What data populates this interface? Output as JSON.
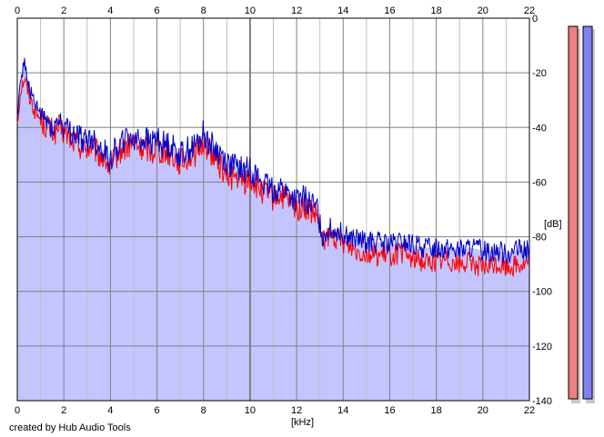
{
  "credit": "created by Hub Audio Tools",
  "chart_data": {
    "type": "area",
    "xlabel": "[kHz]",
    "ylabel": "[dB]",
    "xlim": [
      0,
      22
    ],
    "ylim": [
      -140,
      0
    ],
    "x_ticks": [
      "0",
      "2",
      "4",
      "6",
      "8",
      "10",
      "12",
      "14",
      "16",
      "18",
      "20",
      "22"
    ],
    "y_ticks": [
      "0",
      "-20",
      "-40",
      "-60",
      "-80",
      "-100",
      "-120",
      "-140"
    ],
    "grid": true,
    "colors": {
      "fill": "#c4c4ff",
      "red_line": "#ff0000",
      "blue_line": "#0000c8",
      "major_grid": "#808080",
      "minor_grid": "#c0c0c0",
      "meter_left": "#f08080",
      "meter_right": "#8080f0"
    },
    "series": [
      {
        "color_key": "blue_line",
        "x": [
          0,
          0.15,
          0.3,
          0.5,
          0.75,
          1,
          1.3,
          1.6,
          1.8,
          2,
          2.3,
          2.6,
          2.9,
          3.2,
          3.5,
          3.8,
          4,
          4.2,
          4.5,
          4.8,
          5,
          5.3,
          5.5,
          5.8,
          6,
          6.2,
          6.5,
          6.8,
          7,
          7.3,
          7.6,
          7.8,
          8,
          8.2,
          8.5,
          8.8,
          9,
          9.3,
          9.5,
          9.8,
          10,
          10.3,
          10.6,
          11,
          11.3,
          11.6,
          12,
          12.3,
          12.6,
          12.9,
          13.1,
          13.4,
          13.8,
          14.2,
          14.6,
          15,
          15.5,
          16,
          16.5,
          17,
          17.5,
          18,
          18.5,
          19,
          19.5,
          20,
          20.5,
          21,
          21.5,
          22
        ],
        "values": [
          -35,
          -22,
          -16,
          -25,
          -32,
          -35,
          -38,
          -40,
          -37,
          -40,
          -42,
          -43,
          -45,
          -44,
          -47,
          -49,
          -52,
          -48,
          -45,
          -44,
          -43,
          -45,
          -44,
          -46,
          -43,
          -46,
          -46,
          -48,
          -50,
          -48,
          -47,
          -45,
          -42,
          -45,
          -48,
          -50,
          -53,
          -54,
          -55,
          -56,
          -55,
          -58,
          -61,
          -63,
          -62,
          -64,
          -67,
          -66,
          -68,
          -70,
          -80,
          -77,
          -78,
          -80,
          -81,
          -82,
          -82,
          -83,
          -82,
          -83,
          -84,
          -84,
          -84,
          -85,
          -84,
          -85,
          -85,
          -86,
          -85,
          -85
        ]
      },
      {
        "color_key": "red_line",
        "x": [
          0,
          0.15,
          0.3,
          0.5,
          0.75,
          1,
          1.3,
          1.6,
          1.8,
          2,
          2.3,
          2.6,
          2.9,
          3.2,
          3.5,
          3.8,
          4,
          4.2,
          4.5,
          4.8,
          5,
          5.3,
          5.5,
          5.8,
          6,
          6.2,
          6.5,
          6.8,
          7,
          7.3,
          7.6,
          7.8,
          8,
          8.2,
          8.5,
          8.8,
          9,
          9.3,
          9.5,
          9.8,
          10,
          10.3,
          10.6,
          11,
          11.3,
          11.6,
          12,
          12.3,
          12.6,
          12.9,
          13.1,
          13.4,
          13.8,
          14.2,
          14.6,
          15,
          15.5,
          16,
          16.5,
          17,
          17.5,
          18,
          18.5,
          19,
          19.5,
          20,
          20.5,
          21,
          21.5,
          22
        ],
        "values": [
          -38,
          -26,
          -22,
          -28,
          -34,
          -37,
          -40,
          -42,
          -40,
          -42,
          -44,
          -46,
          -48,
          -47,
          -50,
          -52,
          -56,
          -51,
          -48,
          -47,
          -46,
          -48,
          -47,
          -49,
          -46,
          -49,
          -49,
          -51,
          -53,
          -51,
          -50,
          -48,
          -45,
          -48,
          -51,
          -55,
          -58,
          -58,
          -59,
          -60,
          -59,
          -62,
          -64,
          -66,
          -65,
          -67,
          -70,
          -69,
          -71,
          -73,
          -82,
          -80,
          -81,
          -83,
          -85,
          -86,
          -87,
          -87,
          -86,
          -88,
          -89,
          -89,
          -88,
          -90,
          -89,
          -92,
          -90,
          -91,
          -90,
          -90
        ]
      }
    ]
  }
}
